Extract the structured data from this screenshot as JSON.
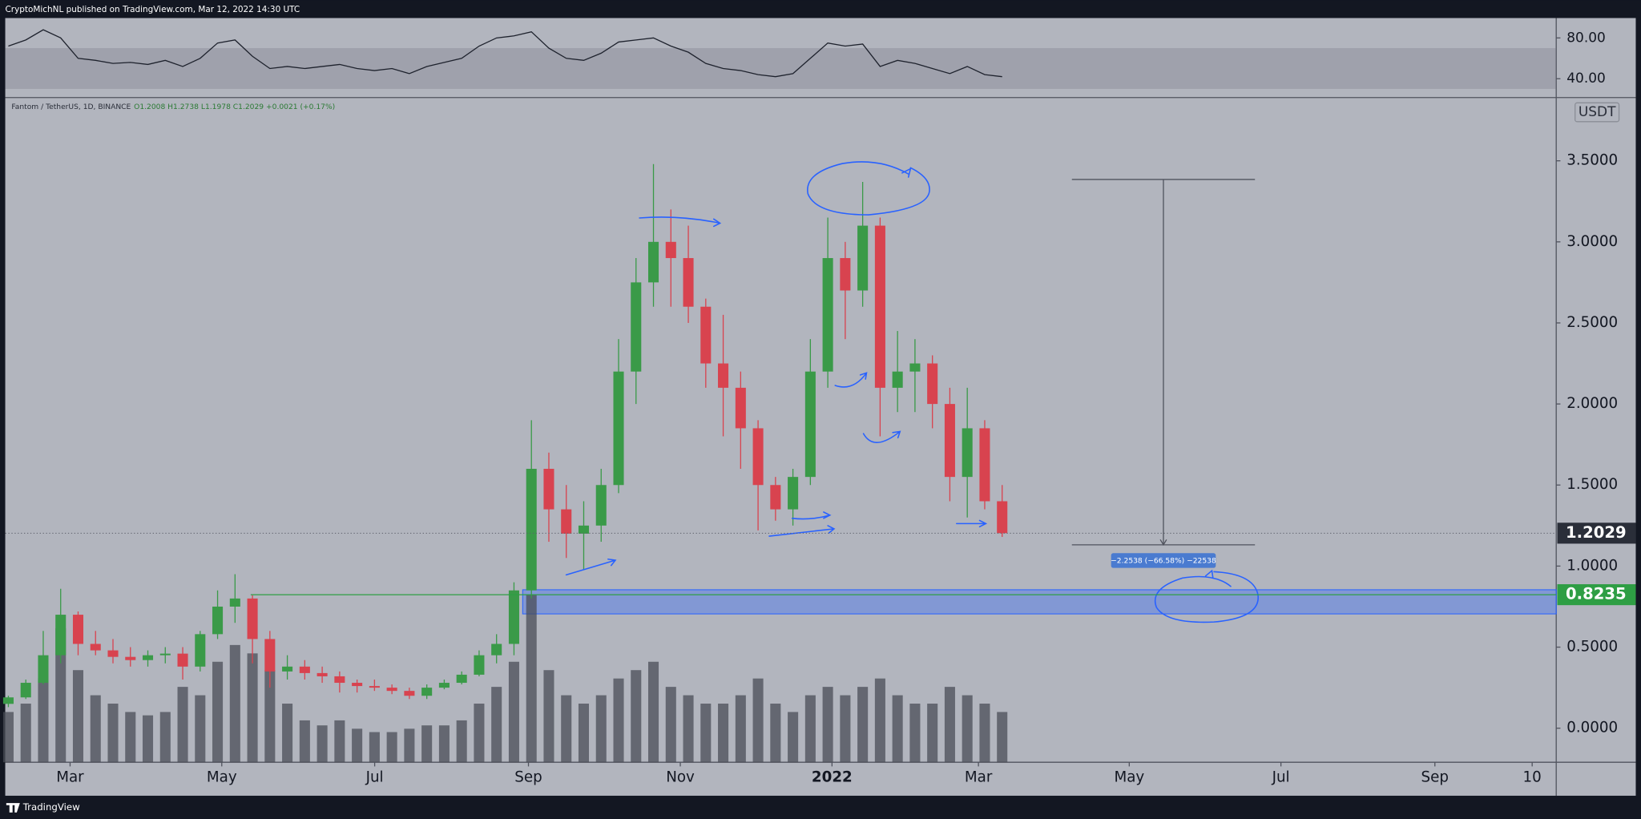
{
  "header": {
    "published": "CryptoMichNL published on TradingView.com, Mar 12, 2022 14:30 UTC"
  },
  "footer": {
    "brand": "TradingView"
  },
  "chart_data": [
    {
      "type": "line",
      "color": "#1e222d",
      "band": [
        30,
        70
      ],
      "values": [
        72,
        78,
        88,
        80,
        60,
        58,
        55,
        56,
        54,
        58,
        52,
        60,
        75,
        78,
        62,
        50,
        52,
        50,
        52,
        54,
        50,
        48,
        50,
        45,
        52,
        56,
        60,
        72,
        80,
        82,
        86,
        70,
        60,
        58,
        65,
        76,
        78,
        80,
        72,
        66,
        55,
        50,
        48,
        44,
        42,
        45,
        60,
        75,
        72,
        74,
        52,
        58,
        55,
        50,
        45,
        52,
        44,
        42
      ],
      "xlim": [
        -0.18,
        88.78
      ],
      "ylim": [
        21.5,
        99.5
      ],
      "yticks": [
        {
          "value": 80,
          "label": "80.00"
        },
        {
          "value": 40,
          "label": "40.00"
        }
      ]
    },
    {
      "type": "candlestick",
      "symbol": "Fantom / TetherUS, 1D, BINANCE",
      "ohlc_text": "O1.2008 H1.2738 L1.1978 C1.2029 +0.0021 (+0.17%)",
      "currency": "USDT",
      "up_color": "#3a9a48",
      "down_color": "#d8434f",
      "volume_color": "#4a4d57",
      "ohlc": [
        [
          0.15,
          0.2,
          0.13,
          0.19
        ],
        [
          0.19,
          0.3,
          0.18,
          0.28
        ],
        [
          0.28,
          0.6,
          0.27,
          0.45
        ],
        [
          0.45,
          0.86,
          0.4,
          0.7
        ],
        [
          0.7,
          0.72,
          0.45,
          0.52
        ],
        [
          0.52,
          0.6,
          0.45,
          0.48
        ],
        [
          0.48,
          0.55,
          0.4,
          0.44
        ],
        [
          0.44,
          0.5,
          0.38,
          0.42
        ],
        [
          0.42,
          0.48,
          0.38,
          0.45
        ],
        [
          0.45,
          0.5,
          0.4,
          0.46
        ],
        [
          0.46,
          0.5,
          0.3,
          0.38
        ],
        [
          0.38,
          0.6,
          0.35,
          0.58
        ],
        [
          0.58,
          0.85,
          0.55,
          0.75
        ],
        [
          0.75,
          0.95,
          0.65,
          0.8
        ],
        [
          0.8,
          0.82,
          0.4,
          0.55
        ],
        [
          0.55,
          0.6,
          0.25,
          0.35
        ],
        [
          0.35,
          0.45,
          0.3,
          0.38
        ],
        [
          0.38,
          0.42,
          0.3,
          0.34
        ],
        [
          0.34,
          0.38,
          0.28,
          0.32
        ],
        [
          0.32,
          0.35,
          0.22,
          0.28
        ],
        [
          0.28,
          0.3,
          0.22,
          0.26
        ],
        [
          0.26,
          0.3,
          0.23,
          0.25
        ],
        [
          0.25,
          0.27,
          0.21,
          0.23
        ],
        [
          0.23,
          0.25,
          0.18,
          0.2
        ],
        [
          0.2,
          0.27,
          0.18,
          0.25
        ],
        [
          0.25,
          0.3,
          0.24,
          0.28
        ],
        [
          0.28,
          0.35,
          0.27,
          0.33
        ],
        [
          0.33,
          0.48,
          0.32,
          0.45
        ],
        [
          0.45,
          0.58,
          0.4,
          0.52
        ],
        [
          0.52,
          0.9,
          0.45,
          0.85
        ],
        [
          0.85,
          1.9,
          0.8,
          1.6
        ],
        [
          1.6,
          1.7,
          1.15,
          1.35
        ],
        [
          1.35,
          1.5,
          1.05,
          1.2
        ],
        [
          1.2,
          1.4,
          0.98,
          1.25
        ],
        [
          1.25,
          1.6,
          1.15,
          1.5
        ],
        [
          1.5,
          2.4,
          1.45,
          2.2
        ],
        [
          2.2,
          2.9,
          2.0,
          2.75
        ],
        [
          2.75,
          3.48,
          2.6,
          3.0
        ],
        [
          3.0,
          3.2,
          2.6,
          2.9
        ],
        [
          2.9,
          3.1,
          2.5,
          2.6
        ],
        [
          2.6,
          2.65,
          2.1,
          2.25
        ],
        [
          2.25,
          2.55,
          1.8,
          2.1
        ],
        [
          2.1,
          2.2,
          1.6,
          1.85
        ],
        [
          1.85,
          1.9,
          1.22,
          1.5
        ],
        [
          1.5,
          1.55,
          1.28,
          1.35
        ],
        [
          1.35,
          1.6,
          1.25,
          1.55
        ],
        [
          1.55,
          2.4,
          1.5,
          2.2
        ],
        [
          2.2,
          3.15,
          2.1,
          2.9
        ],
        [
          2.9,
          3.0,
          2.4,
          2.7
        ],
        [
          2.7,
          3.37,
          2.6,
          3.1
        ],
        [
          3.1,
          3.15,
          1.8,
          2.1
        ],
        [
          2.1,
          2.45,
          1.95,
          2.2
        ],
        [
          2.2,
          2.4,
          1.95,
          2.25
        ],
        [
          2.25,
          2.3,
          1.85,
          2.0
        ],
        [
          2.0,
          2.1,
          1.4,
          1.55
        ],
        [
          1.55,
          2.1,
          1.3,
          1.85
        ],
        [
          1.85,
          1.9,
          1.35,
          1.4
        ],
        [
          1.4,
          1.5,
          1.18,
          1.2029
        ]
      ],
      "volume": [
        30,
        35,
        50,
        80,
        55,
        40,
        35,
        30,
        28,
        30,
        45,
        40,
        60,
        70,
        65,
        55,
        35,
        25,
        22,
        25,
        20,
        18,
        18,
        20,
        22,
        22,
        25,
        35,
        45,
        60,
        100,
        55,
        40,
        35,
        40,
        50,
        55,
        60,
        45,
        40,
        35,
        35,
        40,
        50,
        35,
        30,
        40,
        45,
        40,
        45,
        50,
        40,
        35,
        35,
        45,
        40,
        35,
        30
      ],
      "xlim": [
        -0.18,
        88.78
      ],
      "ylim": [
        -0.21,
        3.89
      ],
      "xticks": [
        {
          "value": 3.54,
          "label": "Mar"
        },
        {
          "value": 12.24,
          "label": "May"
        },
        {
          "value": 21.01,
          "label": "Jul"
        },
        {
          "value": 29.83,
          "label": "Sep"
        },
        {
          "value": 38.54,
          "label": "Nov"
        },
        {
          "value": 47.24,
          "label": "2022"
        },
        {
          "value": 55.64,
          "label": "Mar"
        },
        {
          "value": 64.29,
          "label": "May"
        },
        {
          "value": 72.99,
          "label": "Jul"
        },
        {
          "value": 81.82,
          "label": "Sep"
        },
        {
          "value": 87.4,
          "label": "10"
        }
      ],
      "yticks": [
        {
          "value": 3.5,
          "label": "3.5000"
        },
        {
          "value": 3,
          "label": "3.0000"
        },
        {
          "value": 2.5,
          "label": "2.5000"
        },
        {
          "value": 2,
          "label": "2.0000"
        },
        {
          "value": 1.5,
          "label": "1.5000"
        },
        {
          "value": 1,
          "label": "1.0000"
        },
        {
          "value": 0.5,
          "label": "0.5000"
        },
        {
          "value": 0,
          "label": "0.0000"
        }
      ],
      "last_price": 1.2029,
      "levels": [
        {
          "value": 0.8235,
          "start": 13.9,
          "color": "#2e9e44"
        }
      ],
      "zone": {
        "low": 0.705,
        "high": 0.854,
        "start": 29.5,
        "color": "#2962ff"
      },
      "measure": {
        "from": 3.385,
        "to": 1.1312,
        "x": [
          61.0,
          71.5
        ],
        "label": "−2.2538 (−66.58%) −22538"
      }
    }
  ]
}
